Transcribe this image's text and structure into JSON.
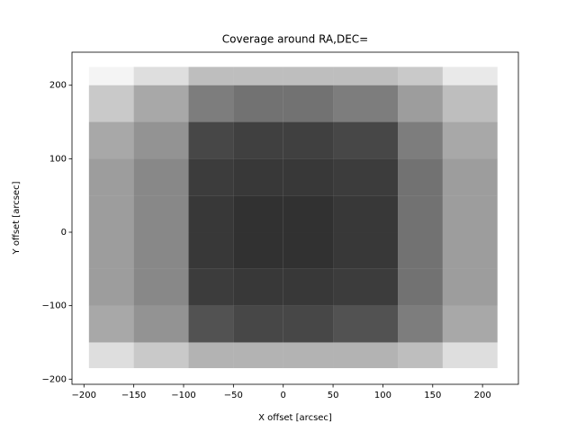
{
  "chart_data": {
    "type": "heatmap",
    "title": "Coverage around RA,DEC=",
    "x_label": "X offset [arcsec]",
    "y_label": "Y offset [arcsec]",
    "x_bins": [
      -195,
      -150,
      -95,
      -50,
      0,
      50,
      115,
      160,
      215
    ],
    "y_bins": [
      -185,
      -150,
      -100,
      -50,
      0,
      50,
      100,
      150,
      200,
      225
    ],
    "density": [
      [
        0.15,
        0.25,
        0.35,
        0.35,
        0.35,
        0.35,
        0.3,
        0.15
      ],
      [
        0.4,
        0.5,
        0.8,
        0.85,
        0.85,
        0.8,
        0.6,
        0.4
      ],
      [
        0.45,
        0.55,
        0.9,
        0.92,
        0.92,
        0.9,
        0.65,
        0.45
      ],
      [
        0.45,
        0.55,
        0.92,
        0.95,
        0.95,
        0.92,
        0.65,
        0.45
      ],
      [
        0.45,
        0.55,
        0.92,
        0.95,
        0.95,
        0.92,
        0.65,
        0.45
      ],
      [
        0.45,
        0.55,
        0.9,
        0.92,
        0.92,
        0.9,
        0.65,
        0.45
      ],
      [
        0.4,
        0.5,
        0.85,
        0.88,
        0.88,
        0.85,
        0.6,
        0.4
      ],
      [
        0.25,
        0.4,
        0.6,
        0.65,
        0.65,
        0.6,
        0.45,
        0.3
      ],
      [
        0.05,
        0.15,
        0.3,
        0.3,
        0.3,
        0.3,
        0.25,
        0.1
      ]
    ],
    "color": "#000000",
    "xlim": [
      -212,
      236
    ],
    "ylim": [
      -207,
      245
    ],
    "xticks": [
      {
        "value": -200,
        "label": "−200"
      },
      {
        "value": -150,
        "label": "−150"
      },
      {
        "value": -100,
        "label": "−100"
      },
      {
        "value": -50,
        "label": "−50"
      },
      0,
      50,
      100,
      150,
      200
    ],
    "yticks": [
      {
        "value": -200,
        "label": "−200"
      },
      {
        "value": -100,
        "label": "−100"
      },
      0,
      100,
      200
    ]
  }
}
